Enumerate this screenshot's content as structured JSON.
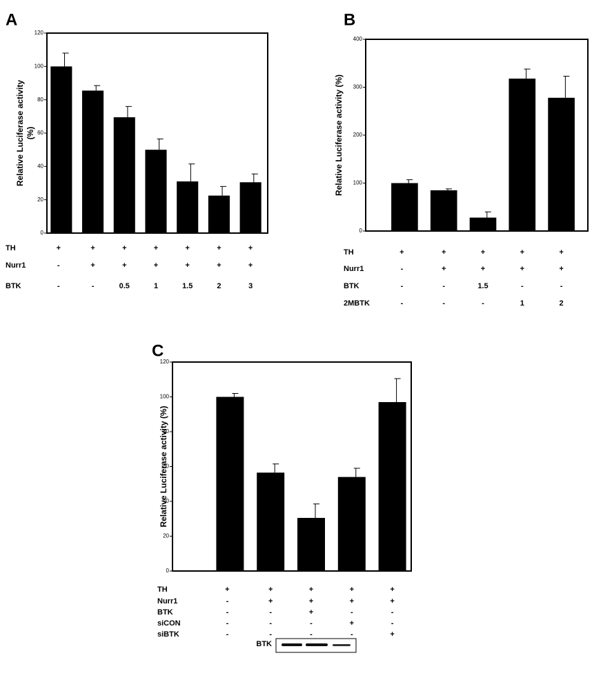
{
  "chart_data": [
    {
      "type": "bar",
      "panel": "A",
      "ylabel": [
        "Relative Luciferase activity",
        "(%)"
      ],
      "values": [
        100,
        85.5,
        69.5,
        50,
        31,
        22.5,
        30.5
      ],
      "errors": [
        8,
        3,
        6.5,
        6.5,
        10.5,
        5.5,
        5
      ],
      "color": "#000000",
      "ylim": [
        0,
        120
      ],
      "yticks": [
        0,
        20,
        40,
        60,
        80,
        100,
        120
      ],
      "conditions": [
        {
          "label": "TH",
          "values": [
            "+",
            "+",
            "+",
            "+",
            "+",
            "+",
            "+"
          ]
        },
        {
          "label": "Nurr1",
          "values": [
            "-",
            "+",
            "+",
            "+",
            "+",
            "+",
            "+"
          ]
        },
        {
          "label": "BTK",
          "values": [
            "-",
            "-",
            "0.5",
            "1",
            "1.5",
            "2",
            "3"
          ]
        }
      ]
    },
    {
      "type": "bar",
      "panel": "B",
      "ylabel": [
        "Relative Luciferase activity (%)"
      ],
      "values": [
        100,
        85,
        28,
        318,
        278
      ],
      "errors": [
        7,
        3,
        12,
        20,
        45
      ],
      "color": "#000000",
      "ylim": [
        0,
        400
      ],
      "yticks": [
        0,
        100,
        200,
        300,
        400
      ],
      "conditions": [
        {
          "label": "TH",
          "values": [
            "+",
            "+",
            "+",
            "+",
            "+"
          ]
        },
        {
          "label": "Nurr1",
          "values": [
            "-",
            "+",
            "+",
            "+",
            "+"
          ]
        },
        {
          "label": "BTK",
          "values": [
            "-",
            "-",
            "1.5",
            "-",
            "-"
          ]
        },
        {
          "label": "2MBTK",
          "values": [
            "-",
            "-",
            "-",
            "1",
            "2"
          ]
        }
      ]
    },
    {
      "type": "bar",
      "panel": "C",
      "ylabel": [
        "Relative Luciferase activity (%)"
      ],
      "values": [
        100,
        56.5,
        30.5,
        54,
        97
      ],
      "errors": [
        2,
        5,
        8,
        5,
        13.5
      ],
      "color": "#000000",
      "ylim": [
        0,
        120
      ],
      "yticks": [
        0,
        20,
        40,
        60,
        80,
        100,
        120
      ],
      "conditions": [
        {
          "label": "TH",
          "values": [
            "+",
            "+",
            "+",
            "+",
            "+"
          ]
        },
        {
          "label": "Nurr1",
          "values": [
            "-",
            "+",
            "+",
            "+",
            "+"
          ]
        },
        {
          "label": "BTK",
          "values": [
            "-",
            "-",
            "+",
            "-",
            "-"
          ]
        },
        {
          "label": "siCON",
          "values": [
            "-",
            "-",
            "-",
            "+",
            "-"
          ]
        },
        {
          "label": "siBTK",
          "values": [
            "-",
            "-",
            "-",
            "-",
            "+"
          ]
        }
      ],
      "blot_label": "BTK"
    }
  ]
}
